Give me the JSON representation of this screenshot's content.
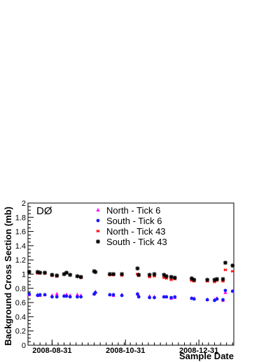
{
  "chart_data": {
    "type": "scatter",
    "annotation": "DØ",
    "xlabel": "Sample Date",
    "ylabel": "Background Cross Section (mb)",
    "ylim": [
      0,
      2
    ],
    "yticks": [
      "0",
      "0.2",
      "0.4",
      "0.6",
      "0.8",
      "1",
      "1.2",
      "1.4",
      "1.6",
      "1.8",
      "2"
    ],
    "xlim": [
      "2008-08-11",
      "2009-01-29"
    ],
    "xticks": [
      {
        "date": "2008-08-31",
        "label": "2008-08-31"
      },
      {
        "date": "2008-10-31",
        "label": "2008-10-31"
      },
      {
        "date": "2008-12-31",
        "label": "2008-12-31"
      }
    ],
    "grid": false,
    "legend_position": "top-center",
    "x": [
      "2008-08-12",
      "2008-08-19",
      "2008-08-21",
      "2008-08-25",
      "2008-08-31",
      "2008-09-04",
      "2008-09-10",
      "2008-09-12",
      "2008-09-15",
      "2008-09-21",
      "2008-09-24",
      "2008-10-05",
      "2008-10-06",
      "2008-10-18",
      "2008-10-21",
      "2008-10-28",
      "2008-11-10",
      "2008-11-11",
      "2008-11-20",
      "2008-11-24",
      "2008-12-02",
      "2008-12-04",
      "2008-12-08",
      "2008-12-11",
      "2008-12-25",
      "2008-12-27",
      "2009-01-07",
      "2009-01-13",
      "2009-01-15",
      "2009-01-20",
      "2009-01-22",
      "2009-01-28"
    ],
    "series": [
      {
        "name": "North - Tick 6",
        "marker": "triangle",
        "color": "#ff00ff",
        "values": [
          0.71,
          0.71,
          0.7,
          0.71,
          0.7,
          0.72,
          0.7,
          0.71,
          0.7,
          0.71,
          0.7,
          0.72,
          0.75,
          0.71,
          0.7,
          0.71,
          0.72,
          0.7,
          0.69,
          0.68,
          0.68,
          0.68,
          0.66,
          0.67,
          0.66,
          0.66,
          0.64,
          0.64,
          0.66,
          0.63,
          0.74,
          0.76
        ]
      },
      {
        "name": "South - Tick 6",
        "marker": "circle",
        "color": "#1a1aff",
        "values": [
          0.72,
          0.7,
          0.71,
          0.71,
          0.68,
          0.68,
          0.69,
          0.69,
          0.68,
          0.68,
          0.68,
          0.72,
          0.74,
          0.71,
          0.71,
          0.7,
          0.72,
          0.68,
          0.67,
          0.67,
          0.68,
          0.68,
          0.67,
          0.68,
          0.66,
          0.65,
          0.64,
          0.63,
          0.65,
          0.64,
          0.77,
          0.76
        ]
      },
      {
        "name": "North - Tick 43",
        "marker": "star",
        "color": "#ff0000",
        "values": [
          1.03,
          1.01,
          1.02,
          1.01,
          0.98,
          0.97,
          1.0,
          1.02,
          0.99,
          0.97,
          0.95,
          1.04,
          1.03,
          0.99,
          0.99,
          0.98,
          1.0,
          0.98,
          0.96,
          0.97,
          0.95,
          0.94,
          0.92,
          0.93,
          0.91,
          0.9,
          0.9,
          0.89,
          0.91,
          0.9,
          1.06,
          1.04
        ]
      },
      {
        "name": "South - Tick 43",
        "marker": "asterisk",
        "color": "#000000",
        "values": [
          1.03,
          1.03,
          1.02,
          1.02,
          0.99,
          0.98,
          1.0,
          1.02,
          0.99,
          0.97,
          0.96,
          1.04,
          1.03,
          1.0,
          1.0,
          1.0,
          1.08,
          0.99,
          0.99,
          1.0,
          0.99,
          0.97,
          0.96,
          0.95,
          0.94,
          0.92,
          0.92,
          0.92,
          0.93,
          0.93,
          1.16,
          1.12
        ]
      }
    ]
  }
}
